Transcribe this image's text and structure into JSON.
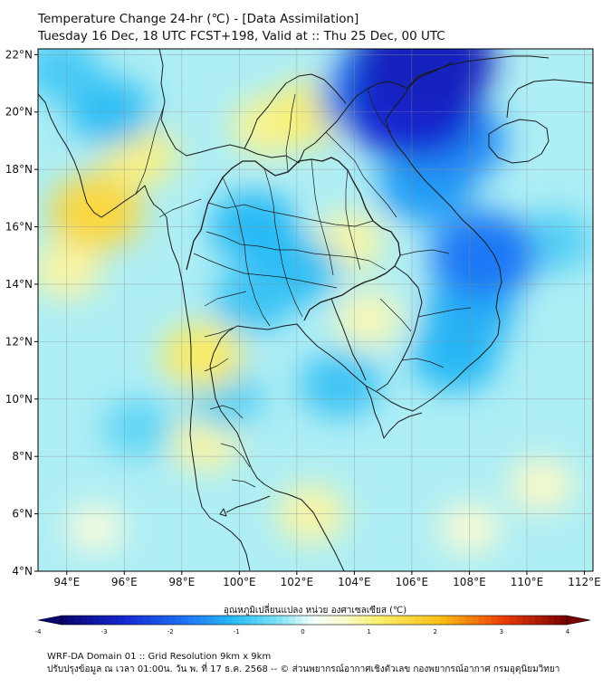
{
  "title_line1": "Temperature Change 24-hr (℃) - [Data Assimilation]",
  "title_line2": "Tuesday 16 Dec, 18 UTC FCST+198, Valid at :: Thu 25 Dec, 00 UTC",
  "colorbar_label": "อุณหภูมิเปลี่ยนแปลง หน่วย องศาเซลเซียส (℃)",
  "footer_line1": "WRF-DA Domain 01 :: Grid Resolution 9km x 9km",
  "footer_line2": "ปรับปรุงข้อมูล ณ เวลา 01:00น. วัน พ. ที่ 17 ธ.ค. 2568 -- © ส่วนพยากรณ์อากาศเชิงตัวเลข กองพยากรณ์อากาศ กรมอุตุนิยมวิทยา",
  "chart_data": {
    "type": "heatmap",
    "x_range": [
      93,
      112.3
    ],
    "y_range": [
      4,
      22.2
    ],
    "x_ticks": [
      "94°E",
      "96°E",
      "98°E",
      "100°E",
      "102°E",
      "104°E",
      "106°E",
      "108°E",
      "110°E",
      "112°E"
    ],
    "y_ticks": [
      "22°N",
      "20°N",
      "18°N",
      "16°N",
      "14°N",
      "12°N",
      "10°N",
      "8°N",
      "6°N",
      "4°N"
    ],
    "gridlines": true,
    "colorbar_range": [
      -4,
      4
    ],
    "colorbar_tick_labels": [
      "-4",
      "-3",
      "-2",
      "-1",
      "0",
      "1",
      "2",
      "3",
      "4"
    ],
    "field_features": [
      {
        "lon": 106.0,
        "lat": 20.3,
        "value": -3.0
      },
      {
        "lon": 106.5,
        "lat": 21.8,
        "value": -3.2
      },
      {
        "lon": 105.5,
        "lat": 21.5,
        "value": -2.2
      },
      {
        "lon": 104.5,
        "lat": 20.5,
        "value": -1.8
      },
      {
        "lon": 107.5,
        "lat": 19.0,
        "value": -1.8
      },
      {
        "lon": 106.5,
        "lat": 17.5,
        "value": -1.6
      },
      {
        "lon": 108.5,
        "lat": 15.0,
        "value": -2.0
      },
      {
        "lon": 108.0,
        "lat": 13.0,
        "value": -1.4
      },
      {
        "lon": 107.5,
        "lat": 11.5,
        "value": -1.3
      },
      {
        "lon": 100.5,
        "lat": 16.0,
        "value": -1.3
      },
      {
        "lon": 100.5,
        "lat": 13.5,
        "value": -1.1
      },
      {
        "lon": 102.0,
        "lat": 14.5,
        "value": -1.2
      },
      {
        "lon": 103.5,
        "lat": 10.5,
        "value": -1.1
      },
      {
        "lon": 95.5,
        "lat": 20.0,
        "value": -1.2
      },
      {
        "lon": 93.8,
        "lat": 21.5,
        "value": -1.0
      },
      {
        "lon": 96.5,
        "lat": 9.0,
        "value": -0.8
      },
      {
        "lon": 99.5,
        "lat": 10.0,
        "value": -0.9
      },
      {
        "lon": 111.0,
        "lat": 15.5,
        "value": -0.9
      },
      {
        "lon": 102.5,
        "lat": 20.0,
        "value": 1.0
      },
      {
        "lon": 101.0,
        "lat": 19.5,
        "value": 0.8
      },
      {
        "lon": 95.0,
        "lat": 16.5,
        "value": 1.5
      },
      {
        "lon": 96.5,
        "lat": 18.5,
        "value": 0.9
      },
      {
        "lon": 98.7,
        "lat": 11.5,
        "value": 1.1
      },
      {
        "lon": 98.8,
        "lat": 8.5,
        "value": 0.7
      },
      {
        "lon": 94.0,
        "lat": 14.5,
        "value": 0.7
      },
      {
        "lon": 104.5,
        "lat": 12.8,
        "value": 0.6
      },
      {
        "lon": 103.8,
        "lat": 15.5,
        "value": 0.7
      },
      {
        "lon": 102.5,
        "lat": 6.0,
        "value": 0.7
      },
      {
        "lon": 110.5,
        "lat": 7.0,
        "value": 0.5
      },
      {
        "lon": 108.0,
        "lat": 5.5,
        "value": 0.4
      },
      {
        "lon": 95.0,
        "lat": 5.5,
        "value": 0.3
      }
    ]
  }
}
